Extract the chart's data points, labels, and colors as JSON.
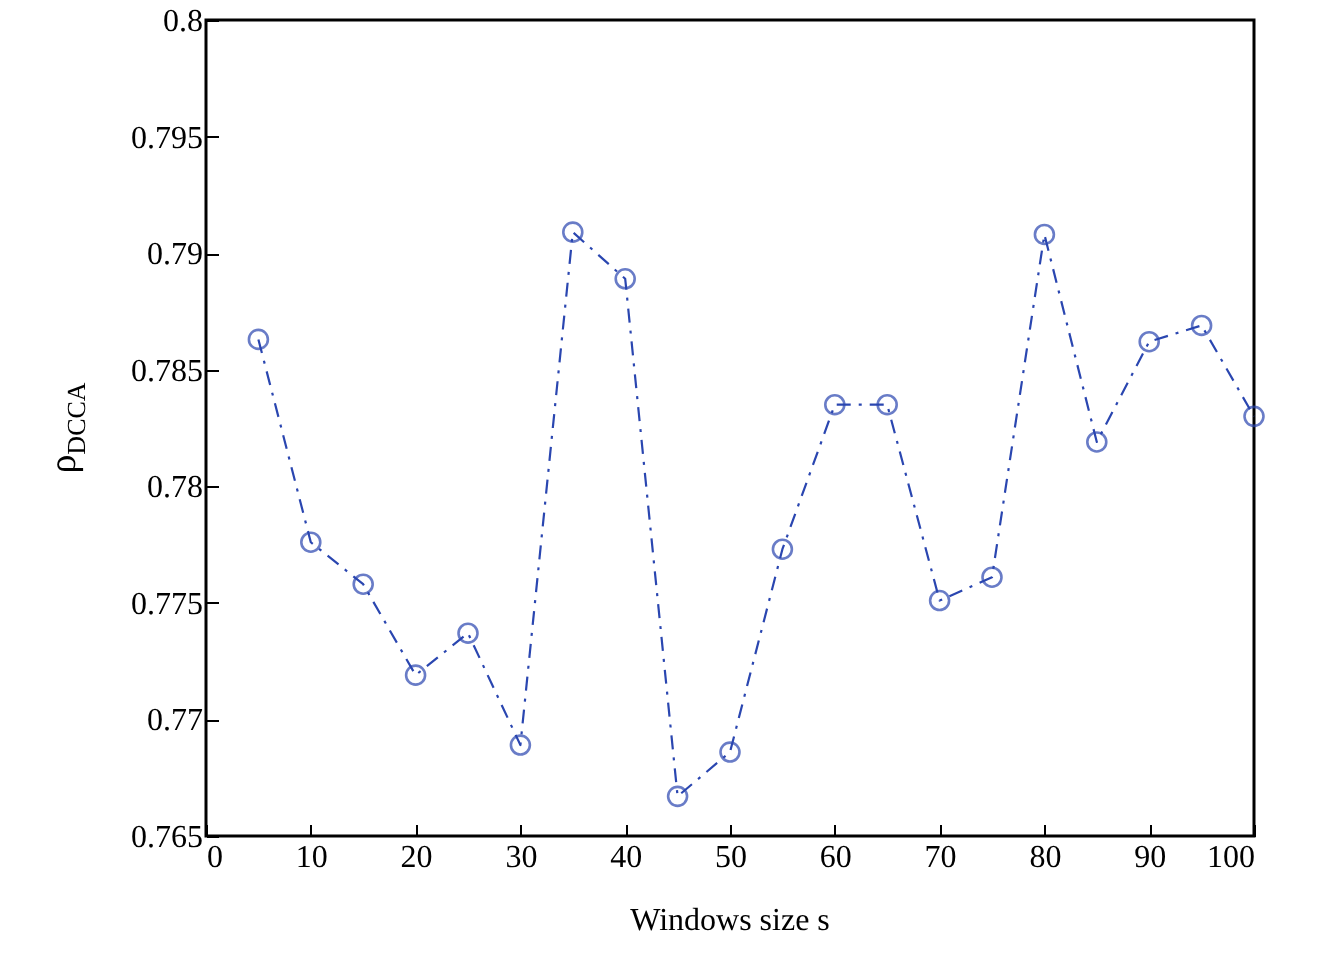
{
  "chart_data": {
    "type": "line",
    "xlabel": "Windows size s",
    "ylabel": "ρ$_{DCCA}$",
    "x": [
      5,
      10,
      15,
      20,
      25,
      30,
      35,
      40,
      45,
      50,
      55,
      60,
      65,
      70,
      75,
      80,
      85,
      90,
      95,
      100
    ],
    "series": [
      {
        "color": "#2a46b0",
        "values": [
          0.7863,
          0.7776,
          0.7758,
          0.7719,
          0.7737,
          0.7689,
          0.7909,
          0.7889,
          0.7667,
          0.7686,
          0.7773,
          0.7835,
          0.7835,
          0.7751,
          0.7761,
          0.7908,
          0.7819,
          0.7862,
          0.7869,
          0.783
        ]
      }
    ],
    "xlim": [
      0,
      100
    ],
    "xticks": [
      0,
      10,
      20,
      30,
      40,
      50,
      60,
      70,
      80,
      90,
      100
    ],
    "ylim": [
      0.765,
      0.8
    ],
    "yticks": [
      0.765,
      0.77,
      0.775,
      0.78,
      0.785,
      0.79,
      0.795,
      0.8
    ],
    "grid": false,
    "marker": "circle",
    "line_style": "dashed"
  }
}
